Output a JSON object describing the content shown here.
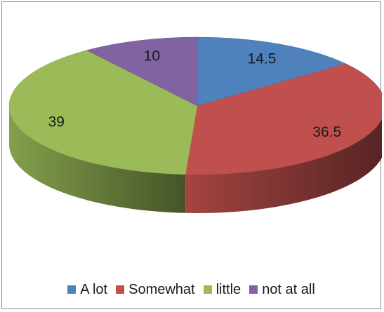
{
  "chart_data": {
    "type": "pie",
    "title": "",
    "slices": [
      {
        "label": "A lot",
        "value": 14.5,
        "data_label": "14.5",
        "color": "#4f81bd"
      },
      {
        "label": "Somewhat",
        "value": 36.5,
        "data_label": "36.5",
        "color": "#c0504d"
      },
      {
        "label": "little",
        "value": 39,
        "data_label": "39",
        "color": "#9bbb59"
      },
      {
        "label": "not at all",
        "value": 10,
        "data_label": "10",
        "color": "#8064a2"
      }
    ],
    "legend_position": "bottom",
    "style": "3d"
  }
}
